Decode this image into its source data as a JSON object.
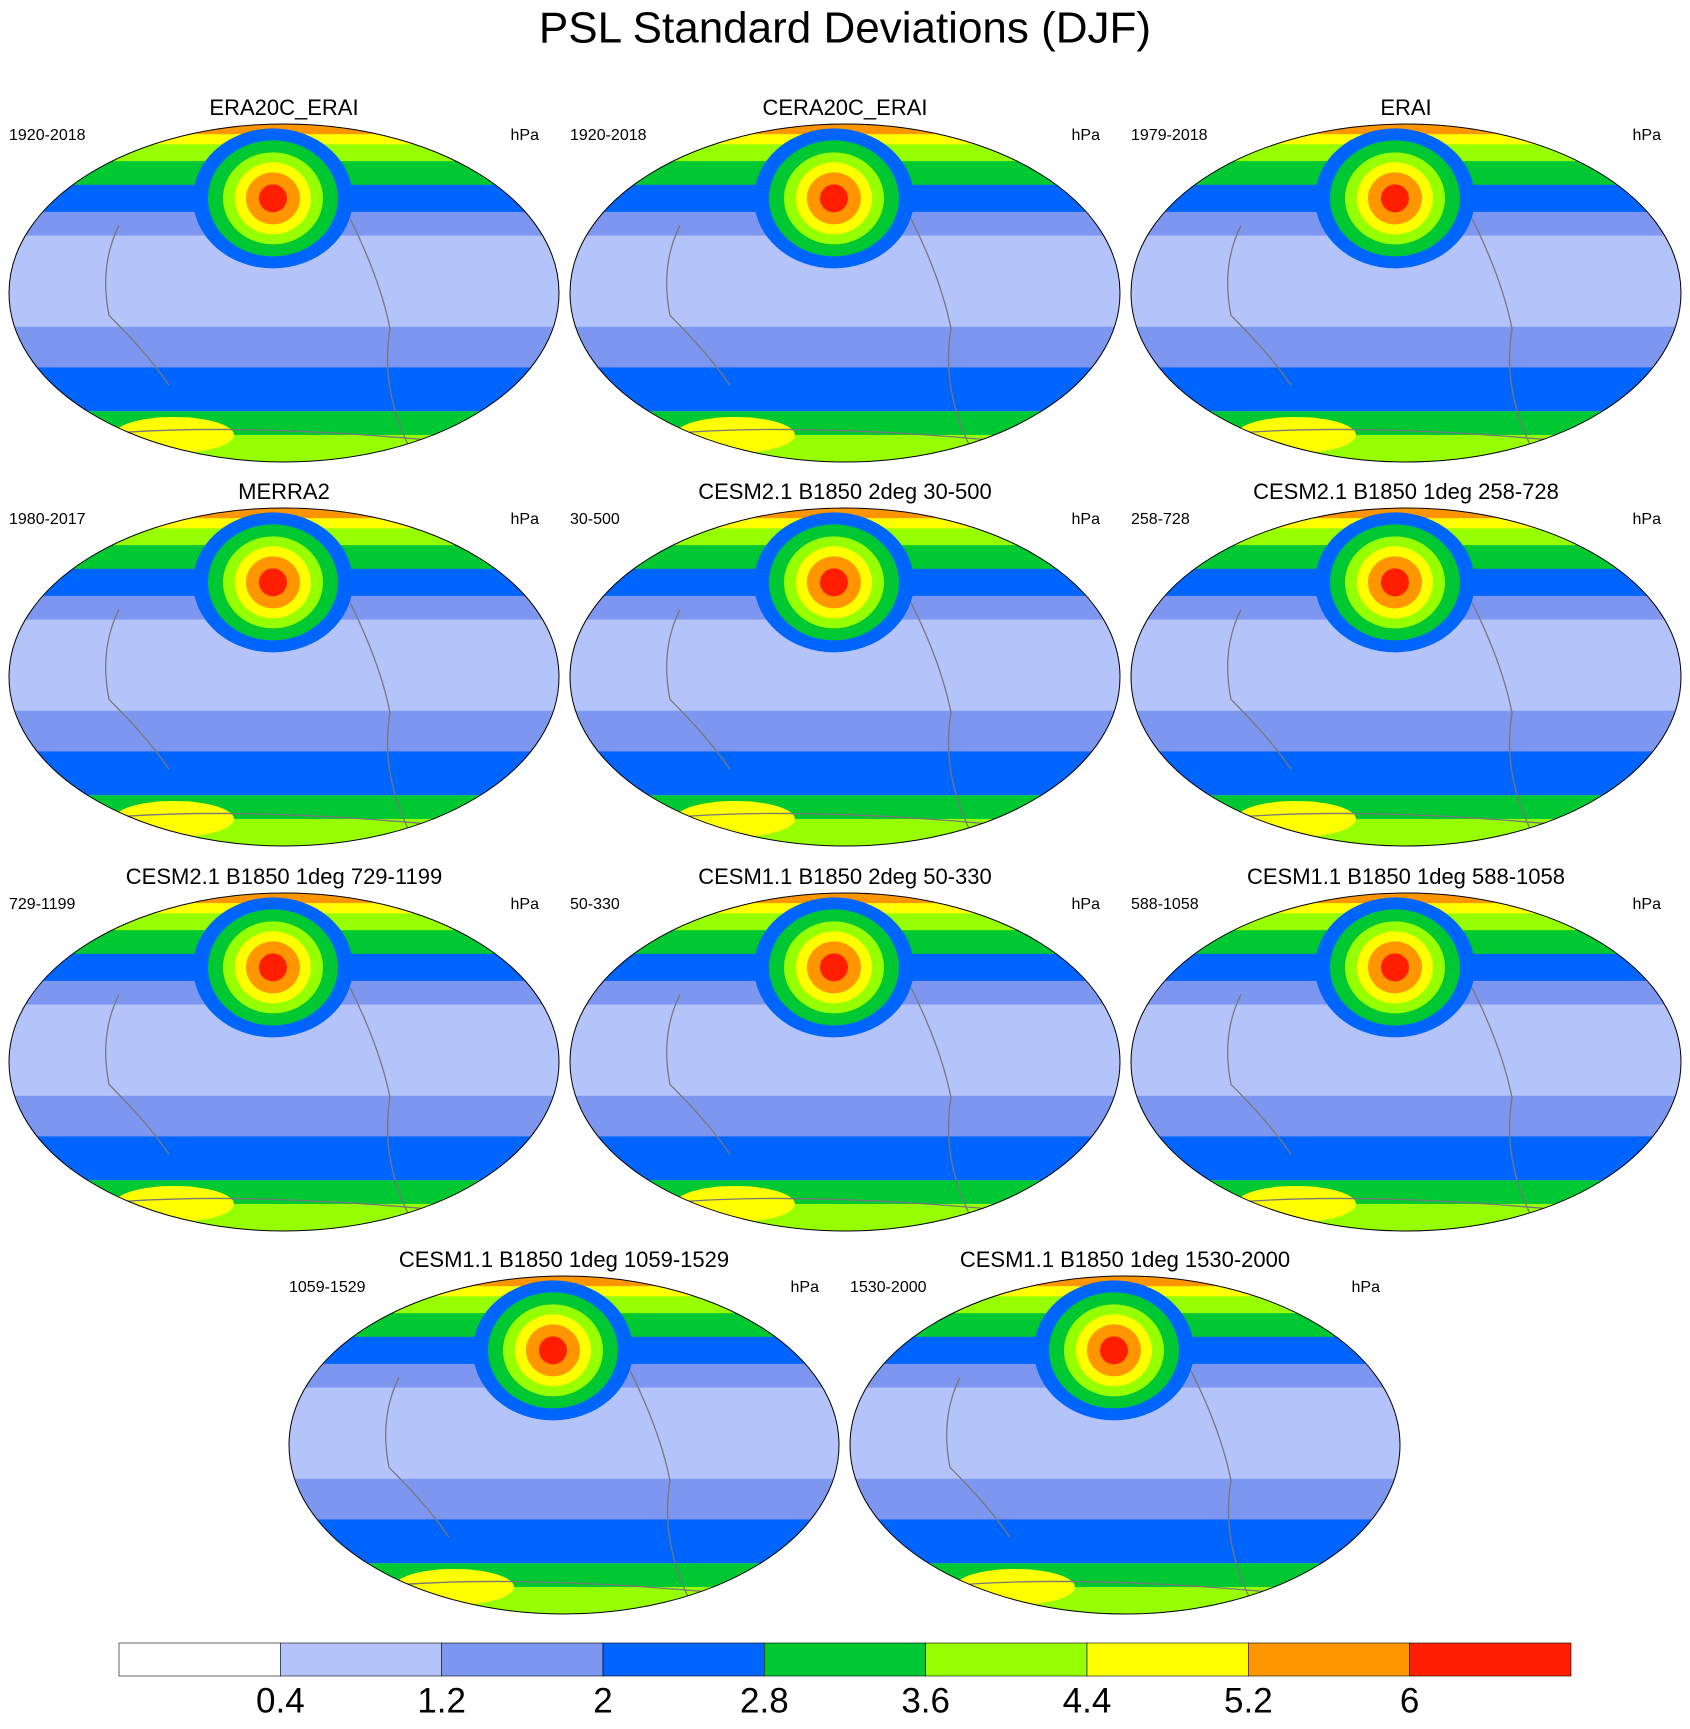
{
  "title": "PSL Standard Deviations (DJF)",
  "panels": [
    {
      "title": "ERA20C_ERAI",
      "period": "1920-2018",
      "units": "hPa"
    },
    {
      "title": "CERA20C_ERAI",
      "period": "1920-2018",
      "units": "hPa"
    },
    {
      "title": "ERAI",
      "period": "1979-2018",
      "units": "hPa"
    },
    {
      "title": "MERRA2",
      "period": "1980-2017",
      "units": "hPa"
    },
    {
      "title": "CESM2.1 B1850 2deg 30-500",
      "period": "30-500",
      "units": "hPa"
    },
    {
      "title": "CESM2.1 B1850 1deg 258-728",
      "period": "258-728",
      "units": "hPa"
    },
    {
      "title": "CESM2.1 B1850 1deg 729-1199",
      "period": "729-1199",
      "units": "hPa"
    },
    {
      "title": "CESM1.1 B1850 2deg 50-330",
      "period": "50-330",
      "units": "hPa"
    },
    {
      "title": "CESM1.1 B1850 1deg 588-1058",
      "period": "588-1058",
      "units": "hPa"
    },
    {
      "title": "CESM1.1 B1850 1deg 1059-1529",
      "period": "1059-1529",
      "units": "hPa"
    },
    {
      "title": "CESM1.1 B1850 1deg 1530-2000",
      "period": "1530-2000",
      "units": "hPa"
    }
  ],
  "colorbar": {
    "colors": [
      "#ffffff",
      "#b4c4fa",
      "#7d96f0",
      "#0064ff",
      "#00c832",
      "#96ff00",
      "#ffff00",
      "#ff9600",
      "#ff1e00"
    ],
    "labels": [
      0.4,
      1.2,
      2,
      2.8,
      3.6,
      4.4,
      5.2,
      6
    ]
  }
}
